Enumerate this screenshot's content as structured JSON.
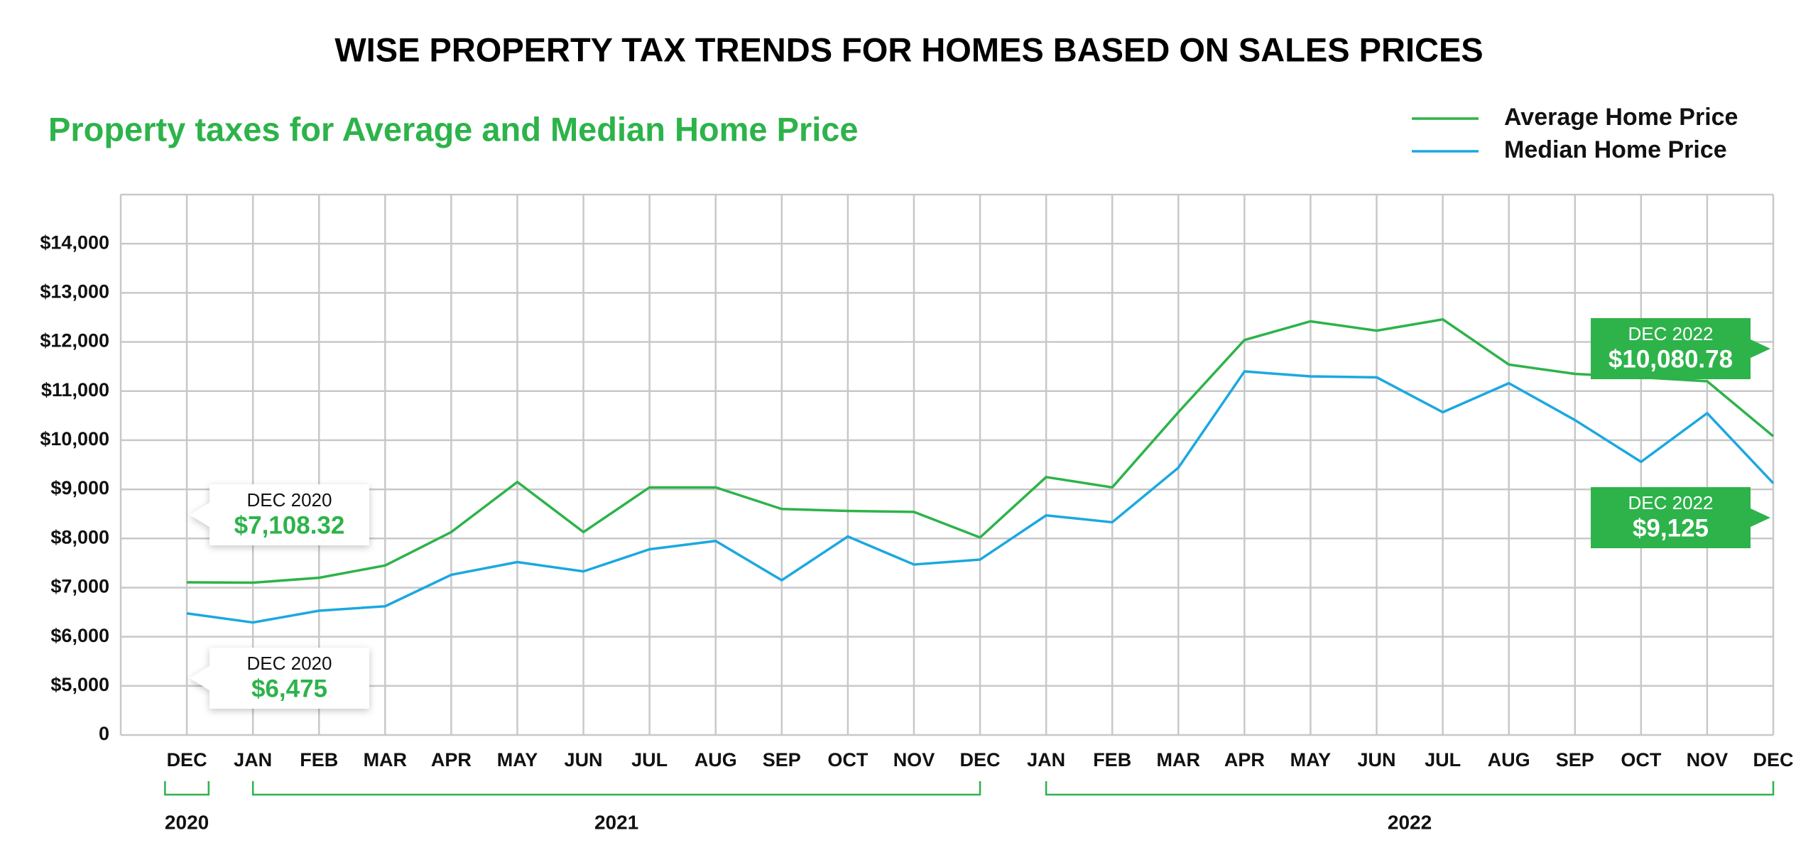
{
  "chart_data": {
    "type": "line",
    "title": "WISE PROPERTY TAX TRENDS FOR HOMES BASED ON SALES PRICES",
    "subtitle": "Property taxes for Average and Median Home Price",
    "categories": [
      "DEC",
      "JAN",
      "FEB",
      "MAR",
      "APR",
      "MAY",
      "JUN",
      "JUL",
      "AUG",
      "SEP",
      "OCT",
      "NOV",
      "DEC",
      "JAN",
      "FEB",
      "MAR",
      "APR",
      "MAY",
      "JUN",
      "JUL",
      "AUG",
      "SEP",
      "OCT",
      "NOV",
      "DEC"
    ],
    "x_groups": [
      {
        "label": "2020",
        "span": 1
      },
      {
        "label": "2021",
        "span": 12
      },
      {
        "label": "2022",
        "span": 12
      }
    ],
    "series": [
      {
        "name": "Average Home Price",
        "color": "#2db34a",
        "values": [
          7108.32,
          7100,
          7200,
          7450,
          8130,
          9150,
          8130,
          9040,
          9040,
          8600,
          8560,
          8540,
          8020,
          9250,
          9040,
          10570,
          12040,
          12420,
          12230,
          12460,
          11540,
          11350,
          11280,
          11200,
          10080.78
        ],
        "value_labels": [
          "$7,108.32",
          null,
          null,
          null,
          null,
          null,
          null,
          null,
          null,
          null,
          null,
          null,
          null,
          null,
          null,
          null,
          null,
          null,
          null,
          null,
          null,
          null,
          null,
          null,
          "$10,080.78"
        ],
        "label_titles": [
          "DEC 2020",
          null,
          null,
          null,
          null,
          null,
          null,
          null,
          null,
          null,
          null,
          null,
          null,
          null,
          null,
          null,
          null,
          null,
          null,
          null,
          null,
          null,
          null,
          null,
          "DEC 2022"
        ]
      },
      {
        "name": "Median Home Price",
        "color": "#1ba8e0",
        "values": [
          6475,
          6290,
          6530,
          6620,
          7260,
          7520,
          7330,
          7780,
          7950,
          7150,
          8040,
          7470,
          7570,
          8470,
          8330,
          9440,
          11400,
          11300,
          11280,
          10570,
          11160,
          10410,
          9560,
          10550,
          9125
        ],
        "value_labels": [
          "$6,475",
          null,
          null,
          null,
          null,
          null,
          null,
          null,
          null,
          null,
          null,
          null,
          null,
          null,
          null,
          null,
          null,
          null,
          null,
          null,
          null,
          null,
          null,
          null,
          "$9,125"
        ],
        "label_titles": [
          "DEC 2020",
          null,
          null,
          null,
          null,
          null,
          null,
          null,
          null,
          null,
          null,
          null,
          null,
          null,
          null,
          null,
          null,
          null,
          null,
          null,
          null,
          null,
          null,
          null,
          "DEC 2022"
        ]
      }
    ],
    "ylim": [
      0,
      15000
    ],
    "yticks": [
      0,
      {
        "value": 5000,
        "label": "$5,000"
      },
      {
        "value": 6000,
        "label": "$6,000"
      },
      {
        "value": 7000,
        "label": "$7,000"
      },
      {
        "value": 8000,
        "label": "$8,000"
      },
      {
        "value": 9000,
        "label": "$9,000"
      },
      {
        "value": 10000,
        "label": "$10,000"
      },
      {
        "value": 11000,
        "label": "$11,000"
      },
      {
        "value": 12000,
        "label": "$12,000"
      },
      {
        "value": 13000,
        "label": "$13,000"
      },
      {
        "value": 14000,
        "label": "$14,000"
      }
    ],
    "broken_axis": true,
    "grid": true,
    "legend": "top-right"
  }
}
